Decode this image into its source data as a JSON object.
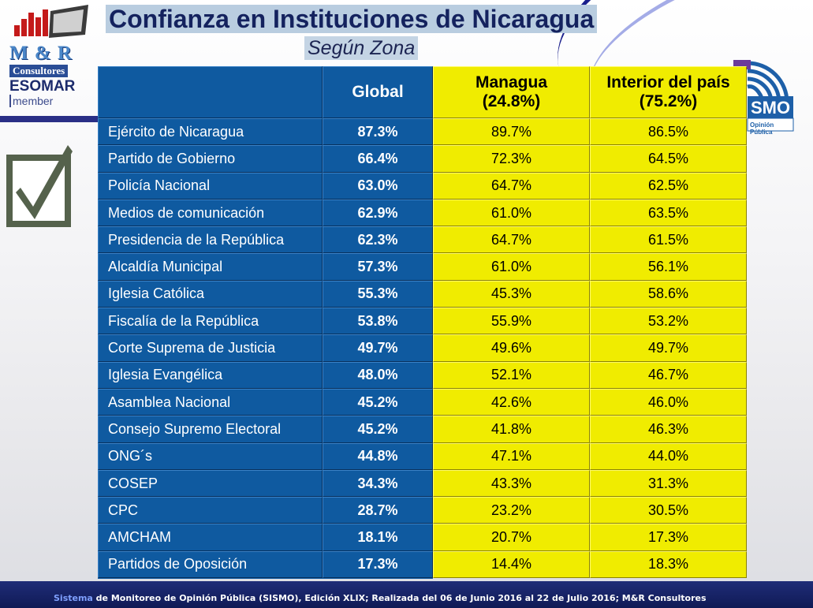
{
  "title": "Confianza en Instituciones de Nicaragua",
  "subtitle": "Según Zona",
  "logo": {
    "brand": "M & R",
    "line2": "Consultores",
    "line3": "ESOMAR",
    "line4": "member"
  },
  "sismo_logo": {
    "text": "SMO",
    "tagline": "Opinión Pública"
  },
  "table": {
    "headers": {
      "institution": "",
      "global": "Global",
      "managua_1": "Managua",
      "managua_2": "(24.8%)",
      "interior_1": "Interior del país",
      "interior_2": "(75.2%)"
    },
    "rows": [
      {
        "institution": "Ejército de Nicaragua",
        "global": "87.3%",
        "managua": "89.7%",
        "interior": "86.5%"
      },
      {
        "institution": "Partido de Gobierno",
        "global": "66.4%",
        "managua": "72.3%",
        "interior": "64.5%"
      },
      {
        "institution": "Policía Nacional",
        "global": "63.0%",
        "managua": "64.7%",
        "interior": "62.5%"
      },
      {
        "institution": "Medios de comunicación",
        "global": "62.9%",
        "managua": "61.0%",
        "interior": "63.5%"
      },
      {
        "institution": "Presidencia de la República",
        "global": "62.3%",
        "managua": "64.7%",
        "interior": "61.5%"
      },
      {
        "institution": "Alcaldía Municipal",
        "global": "57.3%",
        "managua": "61.0%",
        "interior": "56.1%"
      },
      {
        "institution": "Iglesia Católica",
        "global": "55.3%",
        "managua": "45.3%",
        "interior": "58.6%"
      },
      {
        "institution": "Fiscalía de la República",
        "global": "53.8%",
        "managua": "55.9%",
        "interior": "53.2%"
      },
      {
        "institution": "Corte Suprema de Justicia",
        "global": "49.7%",
        "managua": "49.6%",
        "interior": "49.7%"
      },
      {
        "institution": "Iglesia Evangélica",
        "global": "48.0%",
        "managua": "52.1%",
        "interior": "46.7%"
      },
      {
        "institution": "Asamblea Nacional",
        "global": "45.2%",
        "managua": "42.6%",
        "interior": "46.0%"
      },
      {
        "institution": "Consejo Supremo Electoral",
        "global": "45.2%",
        "managua": "41.8%",
        "interior": "46.3%"
      },
      {
        "institution": "ONG´s",
        "global": "44.8%",
        "managua": "47.1%",
        "interior": "44.0%"
      },
      {
        "institution": "COSEP",
        "global": "34.3%",
        "managua": "43.3%",
        "interior": "31.3%"
      },
      {
        "institution": "CPC",
        "global": "28.7%",
        "managua": "23.2%",
        "interior": "30.5%"
      },
      {
        "institution": "AMCHAM",
        "global": "18.1%",
        "managua": "20.7%",
        "interior": "17.3%"
      },
      {
        "institution": "Partidos de Oposición",
        "global": "17.3%",
        "managua": "14.4%",
        "interior": "18.3%"
      }
    ]
  },
  "footer": {
    "highlight": "Sistema",
    "text": " de Monitoreo de Opinión Pública (SISMO), Edición XLIX; Realizada del  06 de Junio 2016 al 22 de Julio 2016; M&R Consultores"
  },
  "colors": {
    "blue_cell": "#0f5aa0",
    "yellow_cell": "#f0ec00",
    "title_text": "#14225e"
  },
  "icons": [
    "bar-chart-logo-icon",
    "checkbox-icon",
    "sismo-waves-icon"
  ]
}
